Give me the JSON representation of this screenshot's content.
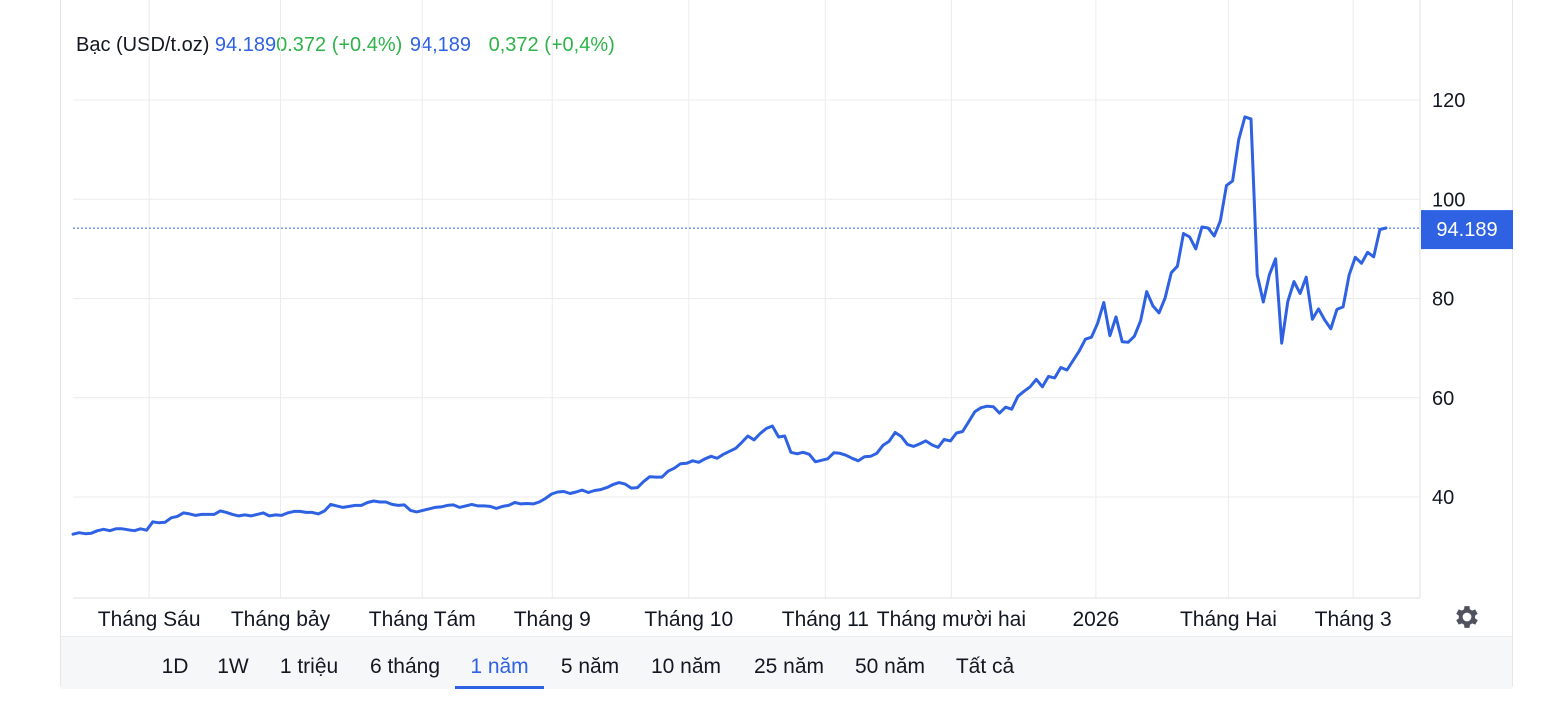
{
  "legend": {
    "symbol": "Bạc (USD/t.oz)",
    "price": "94.189",
    "change": "0.372 (+0.4%)",
    "price_local": "94,189",
    "change_local": "0,372 (+0,4%)"
  },
  "price_badge": "94.189",
  "range_buttons": [
    {
      "label": "1D",
      "active": false
    },
    {
      "label": "1W",
      "active": false
    },
    {
      "label": "1 triệu",
      "active": false
    },
    {
      "label": "6 tháng",
      "active": false
    },
    {
      "label": "1 năm",
      "active": true
    },
    {
      "label": "5 năm",
      "active": false
    },
    {
      "label": "10 năm",
      "active": false
    },
    {
      "label": "25 năm",
      "active": false
    },
    {
      "label": "50 năm",
      "active": false
    },
    {
      "label": "Tất cả",
      "active": false
    }
  ],
  "colors": {
    "line": "#2f62e3",
    "change_positive": "#2fb34a",
    "badge": "#2f62e3",
    "grid": "#ececec"
  },
  "settings_icon": "gear-icon",
  "chart_data": {
    "type": "line",
    "title": "",
    "xlabel": "",
    "ylabel": "",
    "x_ticks": [
      {
        "label": "Tháng Sáu",
        "t": 0.058
      },
      {
        "label": "Tháng bảy",
        "t": 0.158
      },
      {
        "label": "Tháng Tám",
        "t": 0.266
      },
      {
        "label": "Tháng 9",
        "t": 0.365
      },
      {
        "label": "Tháng 10",
        "t": 0.469
      },
      {
        "label": "Tháng 11",
        "t": 0.573
      },
      {
        "label": "Tháng mười hai",
        "t": 0.669
      },
      {
        "label": "2026",
        "t": 0.779
      },
      {
        "label": "Tháng Hai",
        "t": 0.88
      },
      {
        "label": "Tháng 3",
        "t": 0.975
      }
    ],
    "y_ticks": [
      40,
      60,
      80,
      100,
      120
    ],
    "ylim": [
      20,
      130
    ],
    "current_value": 94.189,
    "grid": true,
    "series": [
      {
        "values": [
          32.5,
          32.8,
          32.6,
          32.7,
          33.2,
          33.5,
          33.2,
          33.6,
          33.6,
          33.4,
          33.2,
          33.6,
          33.3,
          35.0,
          34.8,
          34.9,
          35.8,
          36.1,
          36.8,
          36.6,
          36.3,
          36.5,
          36.5,
          36.5,
          37.2,
          36.9,
          36.5,
          36.2,
          36.4,
          36.2,
          36.5,
          36.8,
          36.2,
          36.4,
          36.3,
          36.8,
          37.1,
          37.1,
          36.9,
          36.9,
          36.6,
          37.2,
          38.5,
          38.2,
          37.9,
          38.1,
          38.3,
          38.3,
          38.9,
          39.2,
          39.0,
          39.0,
          38.5,
          38.3,
          38.4,
          37.3,
          37.0,
          37.3,
          37.6,
          37.9,
          38.0,
          38.3,
          38.4,
          37.9,
          38.2,
          38.5,
          38.2,
          38.2,
          38.1,
          37.7,
          38.1,
          38.3,
          38.9,
          38.6,
          38.7,
          38.6,
          39.0,
          39.7,
          40.6,
          41.0,
          41.1,
          40.7,
          41.0,
          41.4,
          40.9,
          41.3,
          41.5,
          41.9,
          42.5,
          42.9,
          42.6,
          41.8,
          41.9,
          43.1,
          44.1,
          44.0,
          44.0,
          45.2,
          45.8,
          46.7,
          46.8,
          47.3,
          47.0,
          47.7,
          48.2,
          47.8,
          48.6,
          49.2,
          49.8,
          51.0,
          52.3,
          51.5,
          52.8,
          53.8,
          54.3,
          52.1,
          52.3,
          49.0,
          48.7,
          49.0,
          48.6,
          47.1,
          47.4,
          47.7,
          48.9,
          48.8,
          48.4,
          47.8,
          47.3,
          48.1,
          48.2,
          48.8,
          50.4,
          51.2,
          53.0,
          52.2,
          50.6,
          50.2,
          50.7,
          51.3,
          50.5,
          50.0,
          51.6,
          51.3,
          52.9,
          53.2,
          55.2,
          57.2,
          58.0,
          58.3,
          58.2,
          56.9,
          58.1,
          57.7,
          60.3,
          61.3,
          62.2,
          63.7,
          62.2,
          64.3,
          64.0,
          66.1,
          65.6,
          67.5,
          69.4,
          71.8,
          72.2,
          75.0,
          79.2,
          72.5,
          76.3,
          71.3,
          71.2,
          72.4,
          75.5,
          81.4,
          78.5,
          77.1,
          80.1,
          85.2,
          86.5,
          93.1,
          92.4,
          90.0,
          94.4,
          94.2,
          92.6,
          95.6,
          102.8,
          103.7,
          112.0,
          116.6,
          116.2,
          84.8,
          79.3,
          84.8,
          88.0,
          71.0,
          79.4,
          83.4,
          81.0,
          84.3,
          75.8,
          77.9,
          75.7,
          73.9,
          77.8,
          78.3,
          84.8,
          88.3,
          87.1,
          89.3,
          88.4,
          93.9,
          94.2
        ]
      }
    ]
  }
}
